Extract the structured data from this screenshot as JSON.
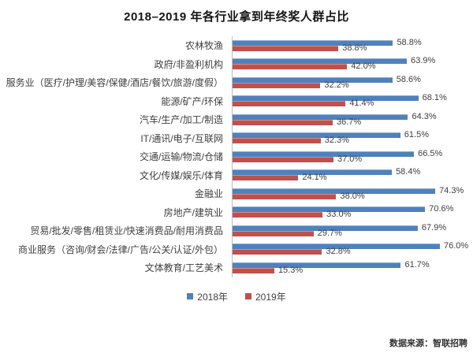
{
  "title": "2018–2019 年各行业拿到年终奖人群占比",
  "source": "数据来源：智联招聘",
  "chart_data": {
    "type": "bar",
    "orientation": "horizontal",
    "title": "2018–2019 年各行业拿到年终奖人群占比",
    "categories": [
      "农林牧渔",
      "政府/非盈利机构",
      "服务业（医疗/护理/美容/保健/酒店/餐饮/旅游/度假）",
      "能源/矿产/环保",
      "汽车/生产/加工/制造",
      "IT/通讯/电子/互联网",
      "交通/运输/物流/仓储",
      "文化/传媒/娱乐/体育",
      "金融业",
      "房地产/建筑业",
      "贸易/批发/零售/租赁业/快速消费品/耐用消费品",
      "商业服务（咨询/财会/法律/广告/公关/认证/外包）",
      "文体教育/工艺美术"
    ],
    "series": [
      {
        "name": "2018年",
        "color": "#4F81BD",
        "values": [
          58.8,
          63.9,
          58.6,
          68.1,
          64.3,
          61.5,
          66.5,
          58.4,
          74.3,
          70.6,
          67.9,
          76.0,
          61.7
        ]
      },
      {
        "name": "2019年",
        "color": "#C0504D",
        "values": [
          38.8,
          42.0,
          32.2,
          41.4,
          36.7,
          32.3,
          37.0,
          24.1,
          38.0,
          33.0,
          29.7,
          32.8,
          15.3
        ]
      }
    ],
    "value_suffix": "%",
    "xlim": [
      0,
      80
    ],
    "grid": false,
    "legend_position": "bottom",
    "axis_line_color": "#bfbfbf"
  }
}
